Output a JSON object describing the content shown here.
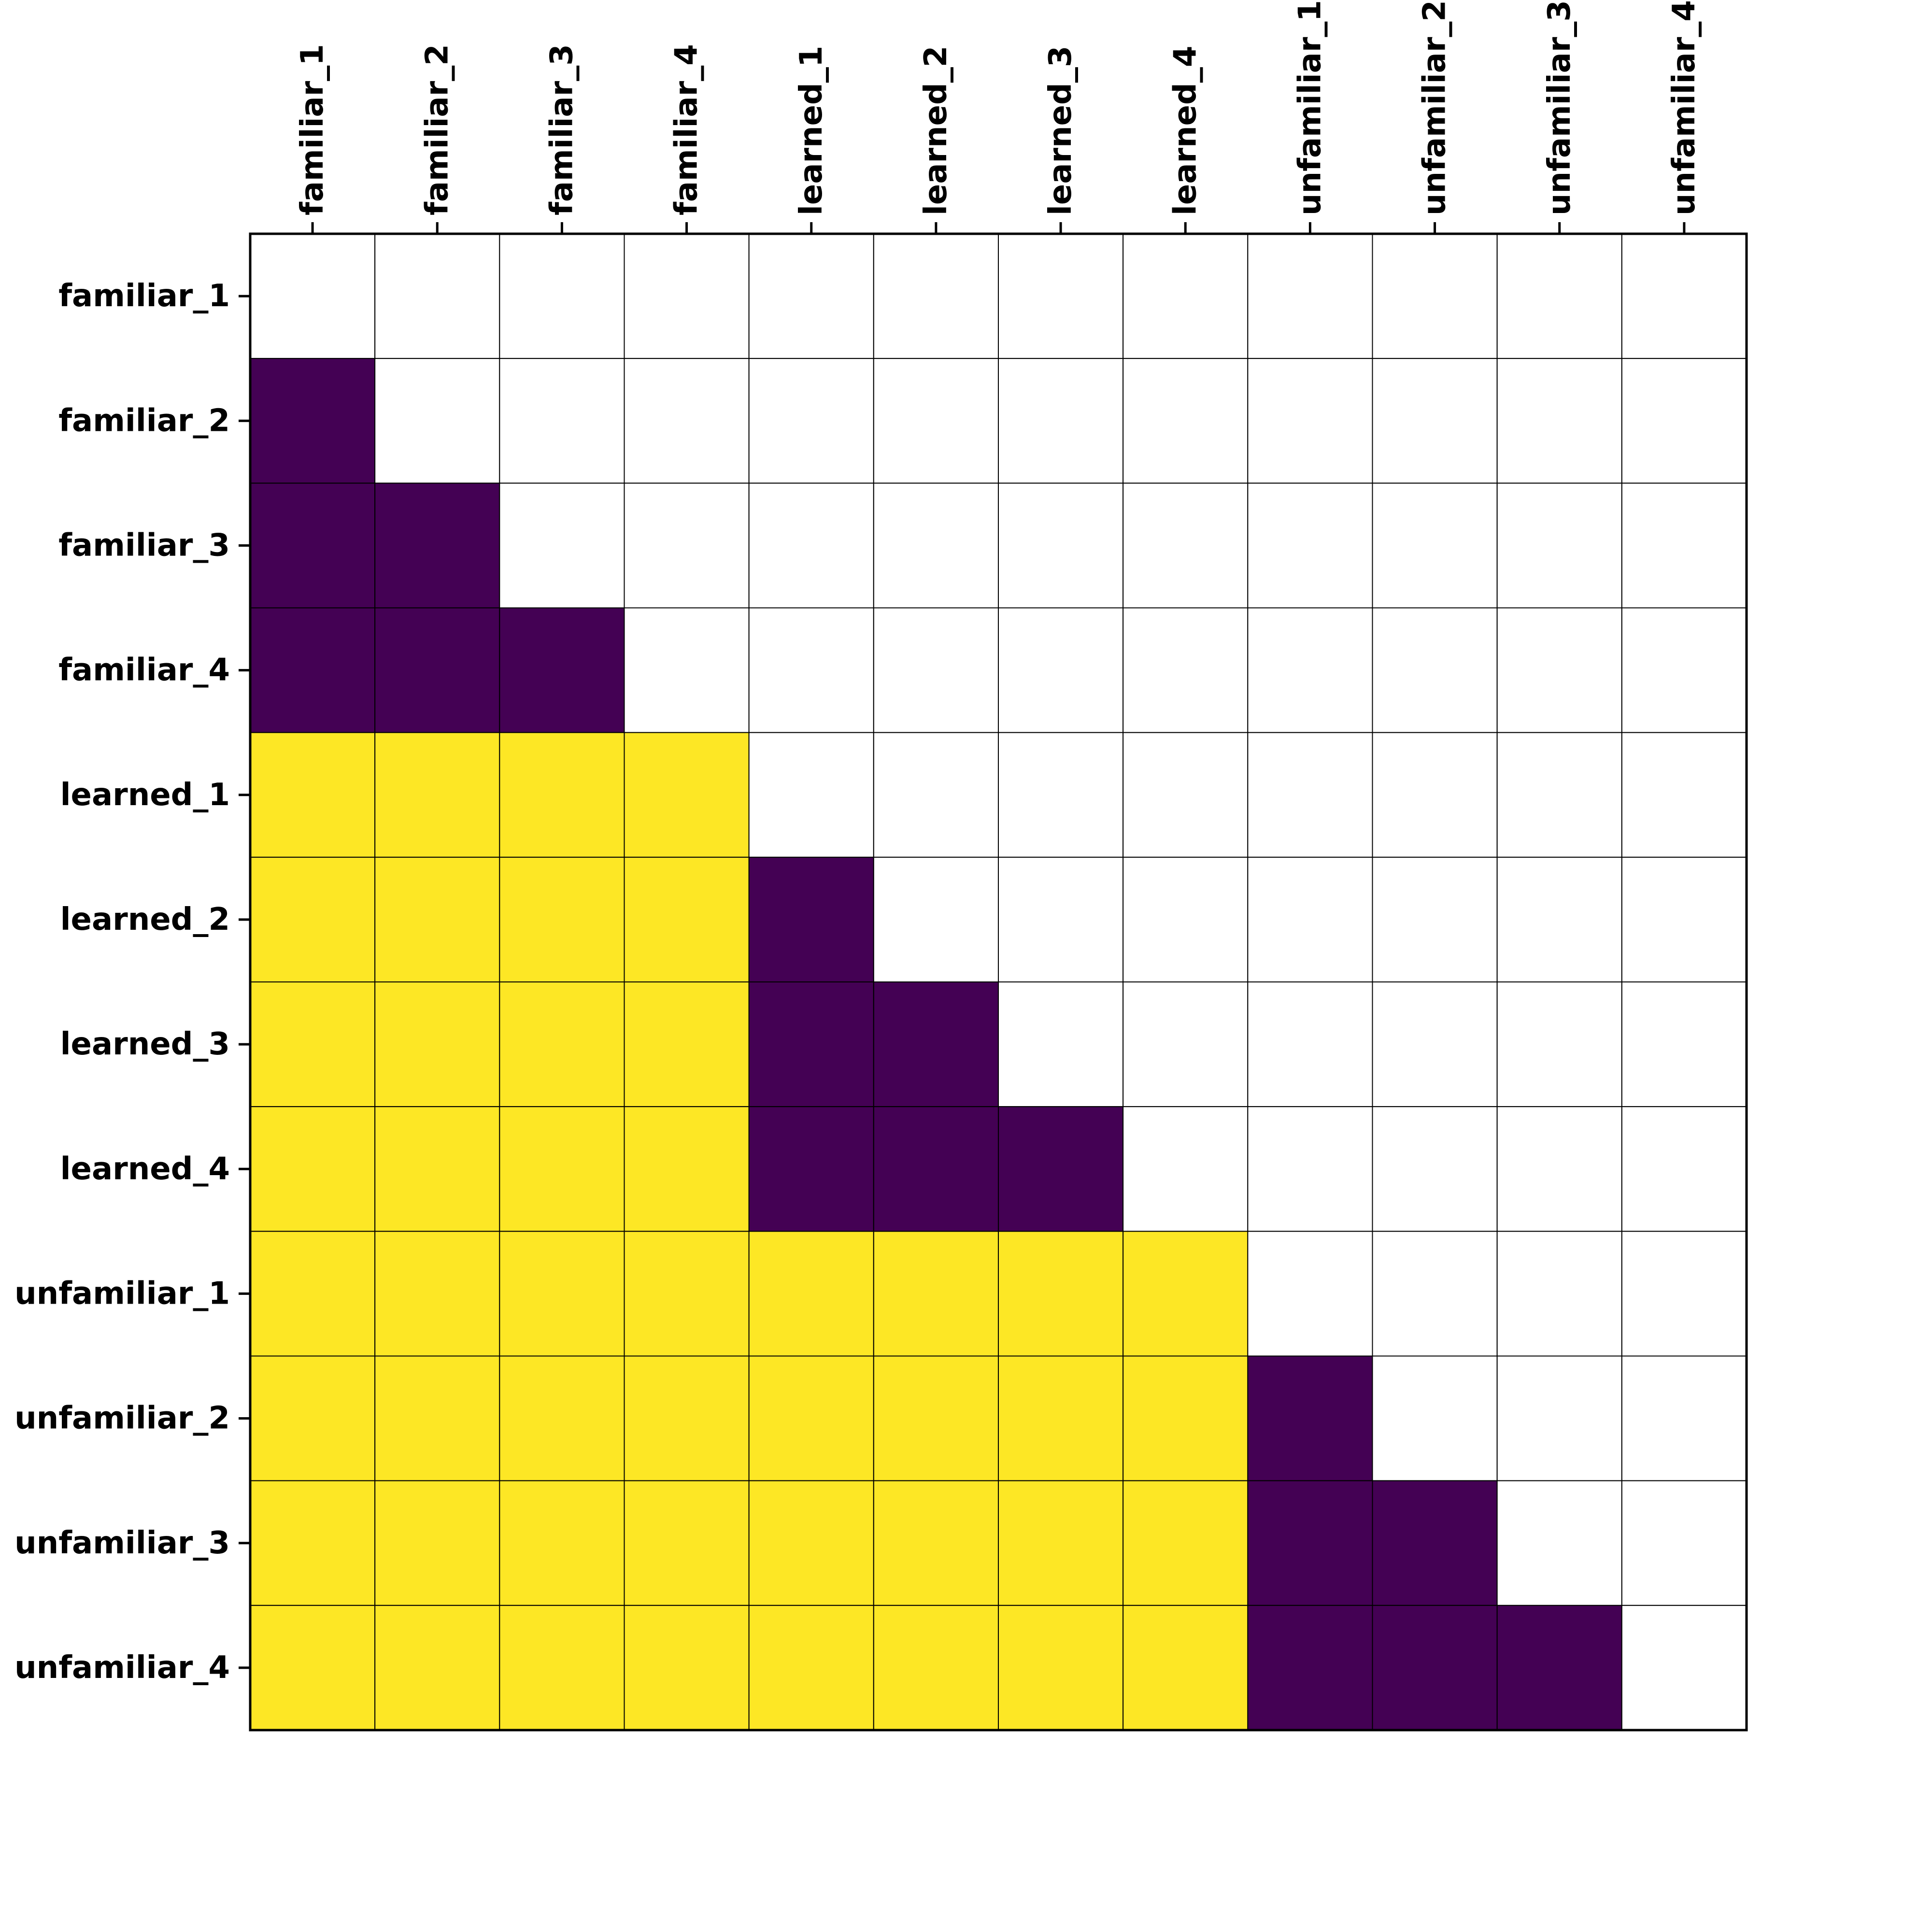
{
  "chart_data": {
    "type": "heatmap",
    "x_labels": [
      "familiar_1",
      "familiar_2",
      "familiar_3",
      "familiar_4",
      "learned_1",
      "learned_2",
      "learned_3",
      "learned_4",
      "unfamiliar_1",
      "unfamiliar_2",
      "unfamiliar_3",
      "unfamiliar_4"
    ],
    "y_labels": [
      "familiar_1",
      "familiar_2",
      "familiar_3",
      "familiar_4",
      "learned_1",
      "learned_2",
      "learned_3",
      "learned_4",
      "unfamiliar_1",
      "unfamiliar_2",
      "unfamiliar_3",
      "unfamiliar_4"
    ],
    "x_axis_position": "top",
    "matrix": [
      [
        null,
        null,
        null,
        null,
        null,
        null,
        null,
        null,
        null,
        null,
        null,
        null
      ],
      [
        0,
        null,
        null,
        null,
        null,
        null,
        null,
        null,
        null,
        null,
        null,
        null
      ],
      [
        0,
        0,
        null,
        null,
        null,
        null,
        null,
        null,
        null,
        null,
        null,
        null
      ],
      [
        0,
        0,
        0,
        null,
        null,
        null,
        null,
        null,
        null,
        null,
        null,
        null
      ],
      [
        1,
        1,
        1,
        1,
        null,
        null,
        null,
        null,
        null,
        null,
        null,
        null
      ],
      [
        1,
        1,
        1,
        1,
        0,
        null,
        null,
        null,
        null,
        null,
        null,
        null
      ],
      [
        1,
        1,
        1,
        1,
        0,
        0,
        null,
        null,
        null,
        null,
        null,
        null
      ],
      [
        1,
        1,
        1,
        1,
        0,
        0,
        0,
        null,
        null,
        null,
        null,
        null
      ],
      [
        1,
        1,
        1,
        1,
        1,
        1,
        1,
        1,
        null,
        null,
        null,
        null
      ],
      [
        1,
        1,
        1,
        1,
        1,
        1,
        1,
        1,
        0,
        null,
        null,
        null
      ],
      [
        1,
        1,
        1,
        1,
        1,
        1,
        1,
        1,
        0,
        0,
        null,
        null
      ],
      [
        1,
        1,
        1,
        1,
        1,
        1,
        1,
        1,
        0,
        0,
        0,
        null
      ]
    ],
    "colors": {
      "low": "#440154",
      "high": "#fde725",
      "empty": "#ffffff",
      "grid": "#000000"
    },
    "grid": true,
    "legend": "none"
  }
}
